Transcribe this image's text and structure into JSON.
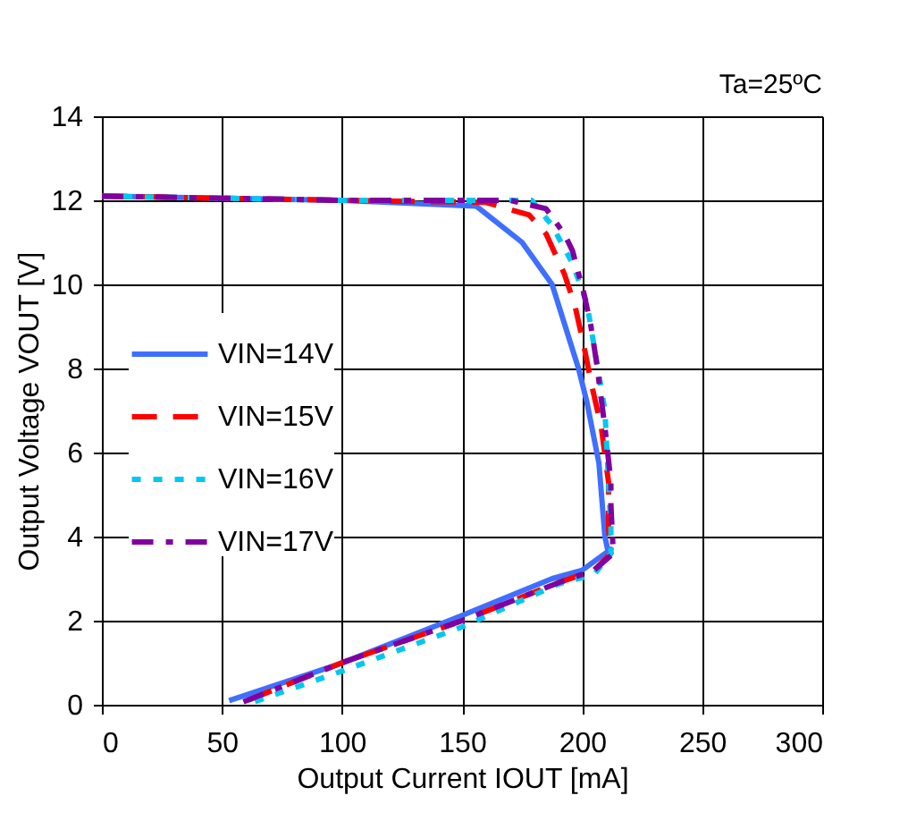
{
  "chart_data": {
    "type": "line",
    "xlabel": "Output Current IOUT [mA]",
    "ylabel": "Output Voltage VOUT [V]",
    "annotations": [
      "Ta=25ºC"
    ],
    "xlim": [
      0,
      300
    ],
    "xticks": [
      0,
      50,
      100,
      150,
      200,
      250,
      300
    ],
    "ylim": [
      0,
      14
    ],
    "yticks": [
      0,
      2,
      4,
      6,
      8,
      10,
      12,
      14
    ],
    "grid": true,
    "legend": "left",
    "series": [
      {
        "name": "VIN=14V",
        "color": "#3f6fff",
        "line_style": "solid",
        "x": [
          0,
          100,
          156,
          175,
          187.5,
          193,
          198.5,
          202,
          207,
          209.5,
          211,
          212,
          200,
          187.5,
          149,
          99,
          53
        ],
        "values": [
          12.1,
          12.0,
          11.86,
          11.0,
          10.0,
          9.0,
          8.0,
          7.2,
          5.75,
          4.0,
          3.6,
          3.7,
          3.2,
          3.0,
          2.1,
          0.97,
          0.1
        ]
      },
      {
        "name": "VIN=15V",
        "color": "#ff0000",
        "line_style": "dashed",
        "x": [
          0,
          100,
          160,
          178,
          185,
          192.6,
          197,
          200.7,
          204,
          208,
          211,
          211,
          212,
          205,
          190,
          150,
          100,
          56
        ],
        "values": [
          12.1,
          12.0,
          11.95,
          11.65,
          11.2,
          10.25,
          9.5,
          8.55,
          7.6,
          6.6,
          5.3,
          4.2,
          3.6,
          3.2,
          2.9,
          2.0,
          1.0,
          0.0
        ]
      },
      {
        "name": "VIN=16V",
        "color": "#00c8f0",
        "line_style": "dotted",
        "x": [
          0,
          100,
          170,
          179,
          187.5,
          196,
          202,
          207,
          209.5,
          211,
          212,
          212,
          205,
          190,
          150,
          100,
          60
        ],
        "values": [
          12.1,
          12.0,
          12.0,
          12.0,
          11.4,
          10.5,
          9.55,
          7.85,
          7.0,
          5.3,
          4.2,
          3.6,
          3.1,
          2.87,
          1.85,
          0.8,
          0.0
        ]
      },
      {
        "name": "VIN=17V",
        "color": "#8000a0",
        "line_style": "dashdot",
        "x": [
          0,
          100,
          170,
          185,
          192.6,
          196,
          200.7,
          203.7,
          206,
          209.5,
          212,
          212,
          213,
          205,
          190,
          150,
          100,
          56
        ],
        "values": [
          12.1,
          12.0,
          12.0,
          11.8,
          11.2,
          10.8,
          9.8,
          9.0,
          8.15,
          6.6,
          5.3,
          4.75,
          3.6,
          3.2,
          2.9,
          2.0,
          1.0,
          0.0
        ]
      }
    ]
  }
}
